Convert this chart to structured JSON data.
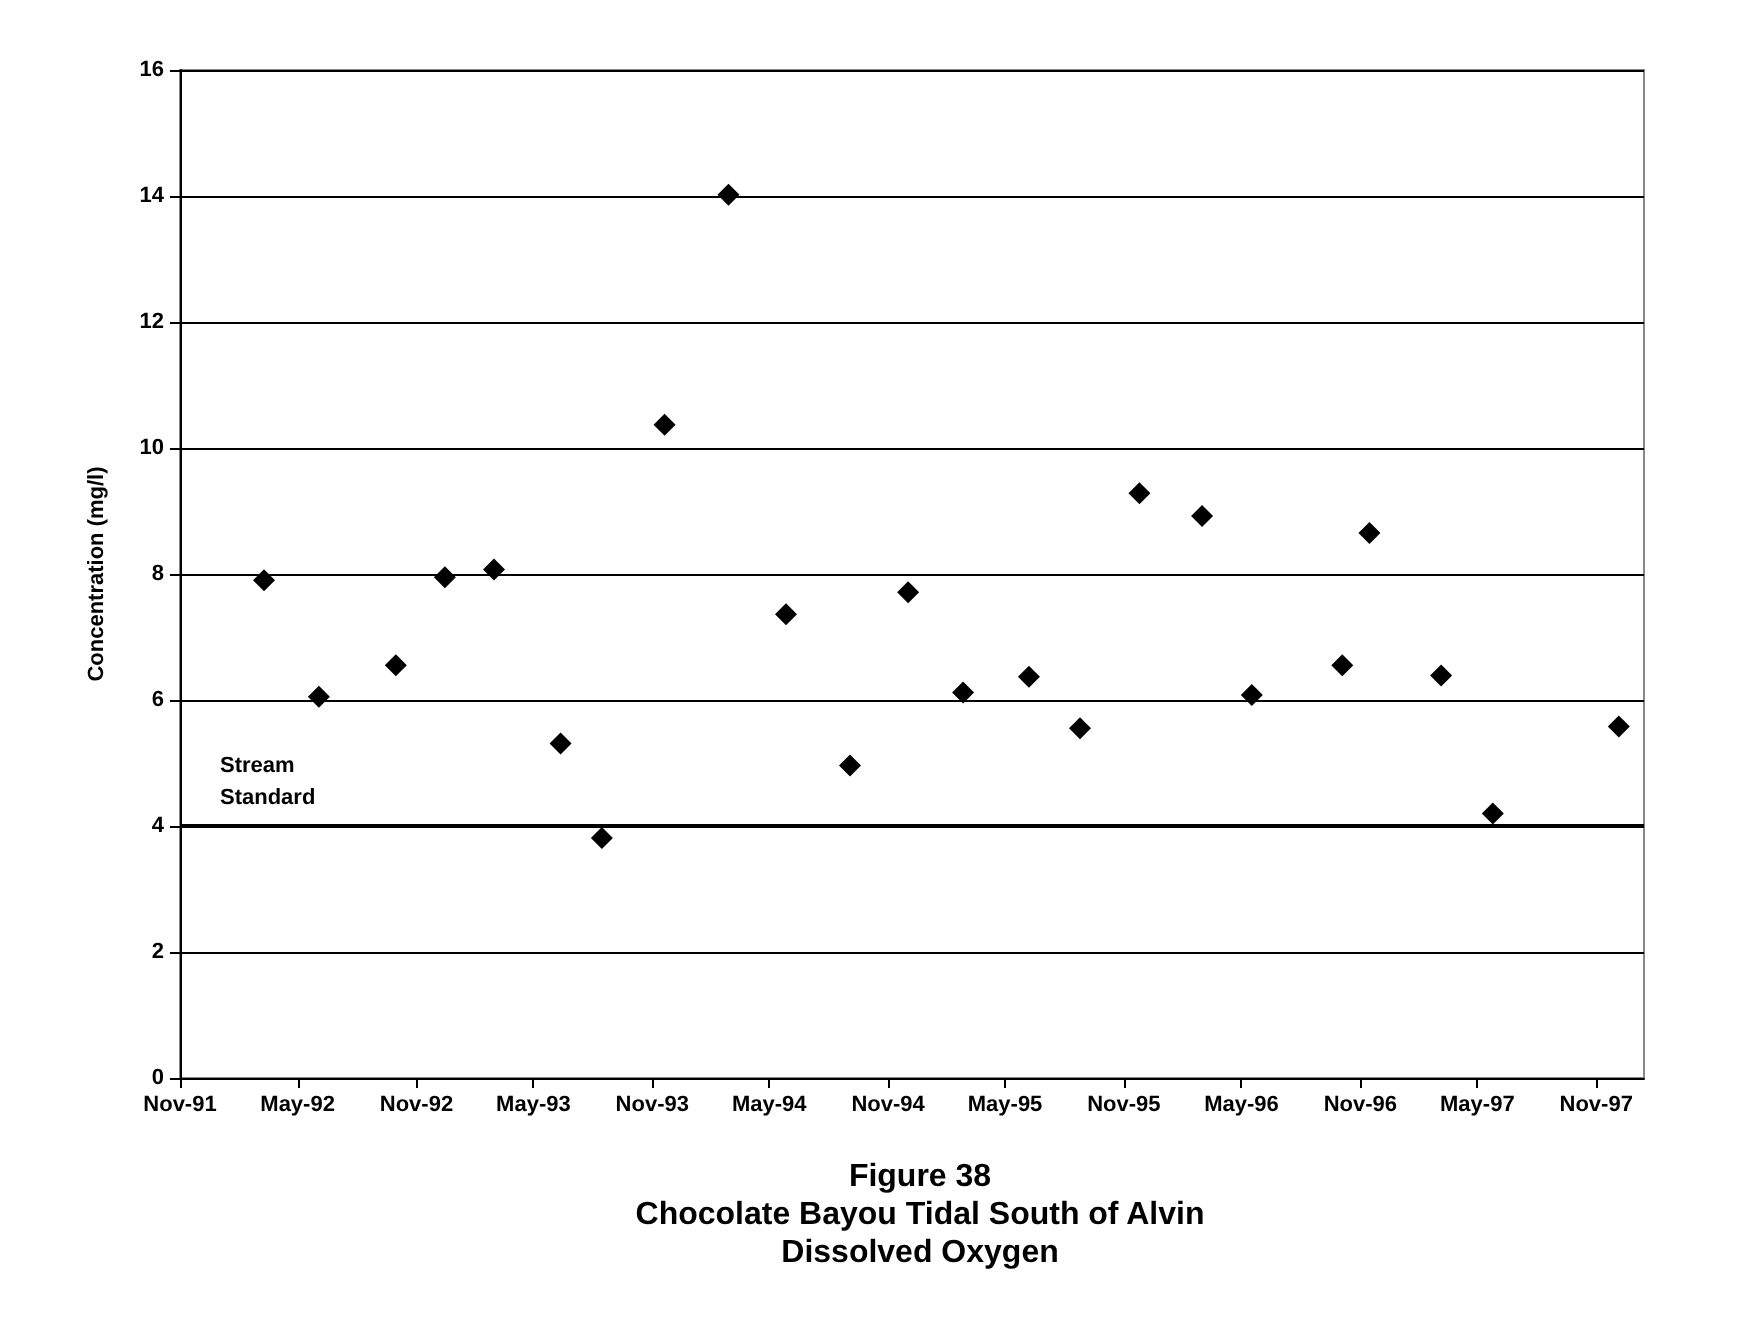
{
  "chart_data": {
    "type": "scatter",
    "title": "Figure 38\nChocolate Bayou Tidal South of Alvin\nDissolved Oxygen",
    "ylabel": "Concentration (mg/l)",
    "x": [
      "1992-03-10",
      "1992-06-03",
      "1992-09-30",
      "1992-12-15",
      "1993-03-01",
      "1993-06-12",
      "1993-08-15",
      "1993-11-20",
      "1994-02-27",
      "1994-05-27",
      "1994-09-03",
      "1994-12-02",
      "1995-02-25",
      "1995-06-07",
      "1995-08-25",
      "1995-11-25",
      "1996-03-01",
      "1996-05-17",
      "1996-10-04",
      "1996-11-15",
      "1997-03-06",
      "1997-05-25",
      "1997-12-06"
    ],
    "values": [
      7.9,
      6.05,
      6.55,
      7.95,
      8.07,
      5.31,
      3.81,
      10.37,
      14.02,
      7.36,
      4.96,
      7.71,
      6.12,
      6.37,
      5.55,
      9.28,
      8.92,
      6.08,
      6.55,
      8.65,
      6.39,
      4.2,
      5.58
    ],
    "color": "#000000",
    "marker": "diamond",
    "xlim": [
      "1991-11-01",
      "1998-01-14"
    ],
    "xticks": [
      {
        "value": "1991-11-01",
        "label": "Nov-91"
      },
      {
        "value": "1992-05-01",
        "label": "May-92"
      },
      {
        "value": "1992-11-01",
        "label": "Nov-92"
      },
      {
        "value": "1993-05-01",
        "label": "May-93"
      },
      {
        "value": "1993-11-01",
        "label": "Nov-93"
      },
      {
        "value": "1994-05-01",
        "label": "May-94"
      },
      {
        "value": "1994-11-01",
        "label": "Nov-94"
      },
      {
        "value": "1995-05-01",
        "label": "May-95"
      },
      {
        "value": "1995-11-01",
        "label": "Nov-95"
      },
      {
        "value": "1996-05-01",
        "label": "May-96"
      },
      {
        "value": "1996-11-01",
        "label": "Nov-96"
      },
      {
        "value": "1997-05-01",
        "label": "May-97"
      },
      {
        "value": "1997-11-01",
        "label": "Nov-97"
      }
    ],
    "ylim": [
      0,
      16
    ],
    "yticks": [
      0,
      2,
      4,
      6,
      8,
      10,
      12,
      14,
      16
    ],
    "grid": "y",
    "ref_lines": [
      {
        "axis": "y",
        "value": 4,
        "label": "Stream Standard",
        "color": "#000000",
        "line_style": "solid"
      }
    ]
  }
}
